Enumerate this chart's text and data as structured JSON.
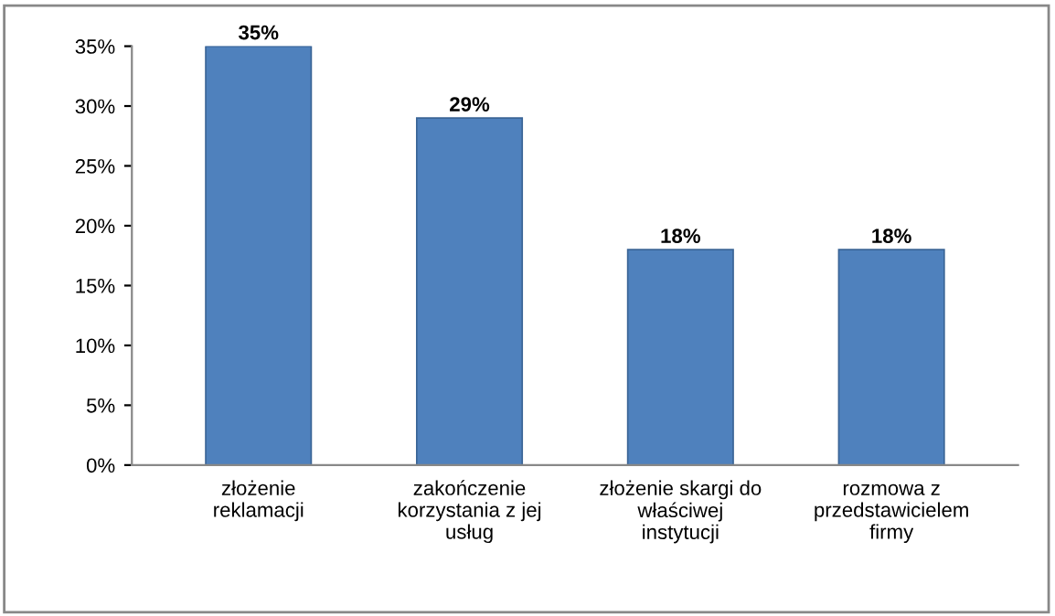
{
  "chart_data": {
    "type": "bar",
    "categories": [
      "złożenie\nreklamacji",
      "zakończenie\nkorzystania z jej\nusług",
      "złożenie skargi do\nwłaściwej\ninstytucji",
      "rozmowa z\nprzedstawicielem\nfirmy"
    ],
    "values": [
      35,
      29,
      18,
      18
    ],
    "value_labels": [
      "35%",
      "29%",
      "18%",
      "18%"
    ],
    "color": "#4f81bd",
    "ylim": [
      0,
      35
    ],
    "yticks": [
      {
        "value": 0,
        "label": "0%"
      },
      {
        "value": 5,
        "label": "5%"
      },
      {
        "value": 10,
        "label": "10%"
      },
      {
        "value": 15,
        "label": "15%"
      },
      {
        "value": 20,
        "label": "20%"
      },
      {
        "value": 25,
        "label": "25%"
      },
      {
        "value": 30,
        "label": "30%"
      },
      {
        "value": 35,
        "label": "35%"
      }
    ],
    "grid": false,
    "legend": false
  }
}
